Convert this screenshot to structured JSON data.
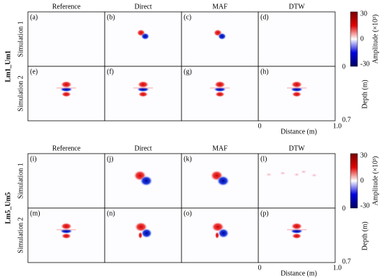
{
  "blocks": [
    {
      "label": "Lm1_Um1",
      "columns": [
        "Reference",
        "Direct",
        "MAF",
        "DTW"
      ],
      "rows": [
        "Simulation 1",
        "Simulation 2"
      ],
      "panels": [
        "(a)",
        "(b)",
        "(c)",
        "(d)",
        "(e)",
        "(f)",
        "(g)",
        "(h)"
      ],
      "colorbar": {
        "title": "Amplitude (×10³)",
        "ticks": [
          "30",
          "0",
          "-30"
        ]
      },
      "depth": {
        "label": "Depth (m)",
        "ticks": [
          "0",
          "0.7"
        ]
      },
      "distance": {
        "label": "Distance (m)",
        "ticks": [
          "0",
          "1.0"
        ]
      }
    },
    {
      "label": "Lm5_Um5",
      "columns": [
        "Reference",
        "Direct",
        "MAF",
        "DTW"
      ],
      "rows": [
        "Simulation 1",
        "Simulation 2"
      ],
      "panels": [
        "(i)",
        "(j)",
        "(k)",
        "(l)",
        "(m)",
        "(n)",
        "(o)",
        "(p)"
      ],
      "colorbar": {
        "title": "Amplitude (×10³)",
        "ticks": [
          "30",
          "0",
          "-30"
        ]
      },
      "depth": {
        "label": "Depth (m)",
        "ticks": [
          "0",
          "0.7"
        ]
      },
      "distance": {
        "label": "Distance (m)",
        "ticks": [
          "0",
          "1.0"
        ]
      }
    }
  ]
}
